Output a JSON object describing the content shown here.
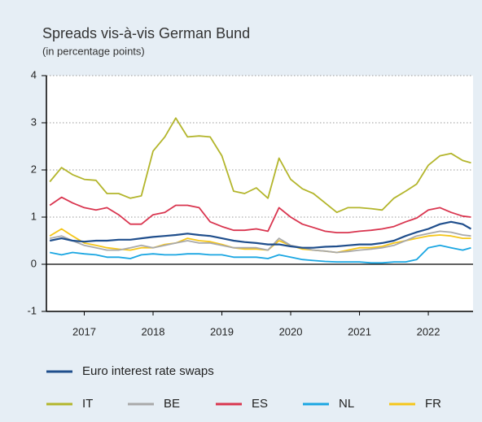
{
  "chart_data": {
    "type": "line",
    "title": "Spreads vis-à-vis German Bund",
    "subtitle": "(in percentage points)",
    "x": [
      2017,
      2017.17,
      2017.33,
      2017.5,
      2017.67,
      2017.83,
      2018,
      2018.17,
      2018.33,
      2018.5,
      2018.67,
      2018.83,
      2019,
      2019.17,
      2019.33,
      2019.5,
      2019.67,
      2019.83,
      2020,
      2020.17,
      2020.33,
      2020.5,
      2020.67,
      2020.83,
      2021,
      2021.17,
      2021.33,
      2021.5,
      2021.67,
      2021.83,
      2022,
      2022.17,
      2022.33,
      2022.5,
      2022.67,
      2022.83,
      2023,
      2023.12
    ],
    "xlim": [
      2016.95,
      2023.15
    ],
    "xticks": [
      {
        "value": 2017.5,
        "label": "2017"
      },
      {
        "value": 2018.5,
        "label": "2018"
      },
      {
        "value": 2019.5,
        "label": "2019"
      },
      {
        "value": 2020.5,
        "label": "2020"
      },
      {
        "value": 2021.5,
        "label": "2021"
      },
      {
        "value": 2022.5,
        "label": "2022"
      }
    ],
    "ylim": [
      -1,
      4
    ],
    "yticks": [
      -1,
      0,
      1,
      2,
      3,
      4
    ],
    "grid": true,
    "series": [
      {
        "name": "Euro interest rate swaps",
        "color": "#1f4e8c",
        "values": [
          0.5,
          0.55,
          0.5,
          0.48,
          0.5,
          0.5,
          0.52,
          0.52,
          0.55,
          0.58,
          0.6,
          0.62,
          0.65,
          0.62,
          0.6,
          0.55,
          0.5,
          0.47,
          0.45,
          0.42,
          0.42,
          0.38,
          0.35,
          0.35,
          0.37,
          0.38,
          0.4,
          0.42,
          0.42,
          0.45,
          0.5,
          0.6,
          0.68,
          0.75,
          0.85,
          0.9,
          0.85,
          0.75
        ]
      },
      {
        "name": "IT",
        "color": "#b3b52b",
        "values": [
          1.75,
          2.05,
          1.9,
          1.8,
          1.78,
          1.5,
          1.5,
          1.4,
          1.45,
          2.4,
          2.7,
          3.1,
          2.7,
          2.72,
          2.7,
          2.3,
          1.55,
          1.5,
          1.62,
          1.4,
          2.25,
          1.8,
          1.6,
          1.5,
          1.3,
          1.1,
          1.2,
          1.2,
          1.18,
          1.15,
          1.4,
          1.55,
          1.7,
          2.1,
          2.3,
          2.35,
          2.2,
          2.15
        ]
      },
      {
        "name": "BE",
        "color": "#a9a9a9",
        "values": [
          0.55,
          0.6,
          0.5,
          0.4,
          0.35,
          0.3,
          0.3,
          0.35,
          0.4,
          0.35,
          0.4,
          0.45,
          0.5,
          0.45,
          0.45,
          0.4,
          0.35,
          0.35,
          0.35,
          0.3,
          0.55,
          0.4,
          0.35,
          0.3,
          0.28,
          0.25,
          0.27,
          0.3,
          0.32,
          0.35,
          0.4,
          0.5,
          0.6,
          0.65,
          0.7,
          0.68,
          0.62,
          0.6
        ]
      },
      {
        "name": "ES",
        "color": "#d9354f",
        "values": [
          1.25,
          1.42,
          1.3,
          1.2,
          1.15,
          1.2,
          1.05,
          0.85,
          0.85,
          1.05,
          1.1,
          1.25,
          1.25,
          1.2,
          0.9,
          0.8,
          0.72,
          0.72,
          0.75,
          0.7,
          1.2,
          1.0,
          0.85,
          0.78,
          0.7,
          0.67,
          0.67,
          0.7,
          0.72,
          0.75,
          0.8,
          0.9,
          0.98,
          1.15,
          1.2,
          1.1,
          1.02,
          1.0
        ]
      },
      {
        "name": "NL",
        "color": "#1aa6e2",
        "values": [
          0.25,
          0.2,
          0.25,
          0.22,
          0.2,
          0.15,
          0.15,
          0.12,
          0.2,
          0.22,
          0.2,
          0.2,
          0.22,
          0.22,
          0.2,
          0.2,
          0.15,
          0.15,
          0.15,
          0.12,
          0.2,
          0.15,
          0.1,
          0.08,
          0.06,
          0.05,
          0.05,
          0.05,
          0.03,
          0.03,
          0.05,
          0.05,
          0.1,
          0.35,
          0.4,
          0.35,
          0.3,
          0.35
        ]
      },
      {
        "name": "FR",
        "color": "#f5c61a",
        "values": [
          0.6,
          0.75,
          0.6,
          0.45,
          0.4,
          0.35,
          0.32,
          0.3,
          0.35,
          0.35,
          0.42,
          0.45,
          0.55,
          0.5,
          0.48,
          0.42,
          0.35,
          0.32,
          0.32,
          0.3,
          0.5,
          0.4,
          0.32,
          0.3,
          0.28,
          0.25,
          0.3,
          0.35,
          0.35,
          0.38,
          0.45,
          0.5,
          0.55,
          0.6,
          0.62,
          0.6,
          0.55,
          0.55
        ]
      }
    ]
  }
}
